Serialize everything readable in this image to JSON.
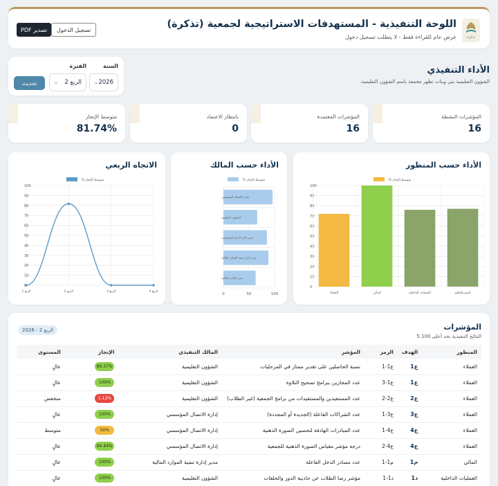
{
  "header": {
    "title": "اللوحة التنفيذية - المستهدفات الاستراتيجية لجمعية (تذكرة)",
    "subtitle": "عرض عام للقراءة فقط - لا يتطلب تسجيل دخول",
    "pdf_label": "تصدير PDF",
    "login_label": "تسجيل الدخول",
    "logo_text": "تذكرة"
  },
  "section": {
    "title": "الأداء التنفيذي",
    "description": "الشؤون التعليمية بني وبنات تظهر مجمعة باسم الشؤون التعليمية."
  },
  "filters": {
    "year_label": "السنة",
    "year_value": "2026",
    "period_label": "الفترة",
    "period_value": "الربع 2",
    "update_label": "تحديث"
  },
  "kpis": [
    {
      "label": "المؤشرات النشطة",
      "value": "16"
    },
    {
      "label": "المؤشرات المعتمدة",
      "value": "16"
    },
    {
      "label": "بانتظار الاعتماد",
      "value": "0"
    },
    {
      "label": "متوسط الإنجاز",
      "value": "81.74%"
    }
  ],
  "charts": {
    "perspective_title": "الأداء حسب المنظور",
    "owner_title": "الأداء حسب المالك",
    "trend_title": "الاتجاه الربعي"
  },
  "chart_data": [
    {
      "type": "bar",
      "title": "الأداء حسب المنظور",
      "legend": "متوسط الإنجاز %",
      "categories": [
        "العملاء",
        "المالي",
        "العمليات الداخلية",
        "النمو والتعلم"
      ],
      "values": [
        72,
        100,
        76,
        77
      ],
      "colors": [
        "#f4b942",
        "#8fcf4c",
        "#8aa46a",
        "#8aa46a"
      ],
      "ylim": [
        0,
        100
      ],
      "yticks": [
        0,
        10,
        20,
        30,
        40,
        50,
        60,
        70,
        80,
        90,
        100
      ]
    },
    {
      "type": "bar",
      "orientation": "horizontal",
      "title": "الأداء حسب المالك",
      "legend": "متوسط الإنجاز %",
      "categories": [
        "إدارة الاتصال المؤسسي",
        "الشؤون التعليمية",
        "مدير إدارة الدعم المؤسسي",
        "مدير إدارة تنمية الموارد المالية",
        "مدير الإدارة المالية"
      ],
      "values": [
        96,
        66,
        85,
        88,
        63
      ],
      "color": "#a9ccec",
      "xlim": [
        0,
        100
      ],
      "xticks": [
        0,
        50,
        100
      ]
    },
    {
      "type": "line",
      "title": "الاتجاه الربعي",
      "legend": "متوسط الإنجاز %",
      "categories": [
        "الربع 1",
        "الربع 2",
        "الربع 3",
        "الربع 4"
      ],
      "values": [
        0,
        81.74,
        0,
        0
      ],
      "color": "#5b9bc9",
      "ylim": [
        0,
        100
      ],
      "yticks": [
        0,
        10,
        20,
        30,
        40,
        50,
        60,
        70,
        80,
        90,
        100
      ]
    }
  ],
  "indicators": {
    "title": "المؤشرات",
    "subtitle": "النتائج التنفيذية بحد أعلى 5.100",
    "period_badge": "الربع 2 - 2026",
    "columns": [
      "المنظور",
      "الهدف",
      "الرمز",
      "المؤشر",
      "المالك التنفيذي",
      "الإنجاز",
      "المستوى"
    ],
    "rows": [
      {
        "perspective": "العملاء",
        "goal": "ع1",
        "code": "ع1-1",
        "indicator": "نسبة الحاصلين على تقدير ممتاز في المرحليات",
        "owner": "الشؤون التعليمية",
        "achievement": "89.37%",
        "color": "#8fcf4c",
        "level": "عالٍ"
      },
      {
        "perspective": "العملاء",
        "goal": "ع1",
        "code": "ع1-3",
        "indicator": "عدد المجازين ببرامج تصحيح التلاوة",
        "owner": "الشؤون التعليمية",
        "achievement": "100%",
        "color": "#8fcf4c",
        "level": "عالٍ"
      },
      {
        "perspective": "العملاء",
        "goal": "ع2",
        "code": "ع2-2",
        "indicator": "عدد المستفيدين والمستفيدات من برامج الجمعية (غير الطلاب)",
        "owner": "الشؤون التعليمية",
        "achievement": "1.12%",
        "color": "#e5483f",
        "level": "منخفض"
      },
      {
        "perspective": "العملاء",
        "goal": "ع3",
        "code": "ع3-1",
        "indicator": "عدد الشراكات الفاعلة (الجديدة أو المجددة)",
        "owner": "إدارة الاتصال المؤسسي",
        "achievement": "100%",
        "color": "#8fcf4c",
        "level": "عالٍ"
      },
      {
        "perspective": "العملاء",
        "goal": "ع4",
        "code": "ع4-1",
        "indicator": "عدد المبادرات الهادفة لتحسين الصورة الذهنية",
        "owner": "إدارة الاتصال المؤسسي",
        "achievement": "50%",
        "color": "#f4b942",
        "level": "متوسط"
      },
      {
        "perspective": "العملاء",
        "goal": "ع4",
        "code": "ع4-2",
        "indicator": "درجة مؤشر مقياس الصورة الذهنية للجمعية",
        "owner": "إدارة الاتصال المؤسسي",
        "achievement": "94.44%",
        "color": "#8fcf4c",
        "level": "عالٍ"
      },
      {
        "perspective": "المالي",
        "goal": "م1",
        "code": "م1-1",
        "indicator": "عدد مصادر الدخل الفاعلة",
        "owner": "مدير إدارة تنمية الموارد المالية",
        "achievement": "100%",
        "color": "#8fcf4c",
        "level": "عالٍ"
      },
      {
        "perspective": "العمليات الداخلية",
        "goal": "د1",
        "code": "د1-1",
        "indicator": "مؤشر رضا الطلاب عن جاذبية الدور والحلقات",
        "owner": "الشؤون التعليمية",
        "achievement": "100%",
        "color": "#8fcf4c",
        "level": "عالٍ"
      }
    ]
  }
}
